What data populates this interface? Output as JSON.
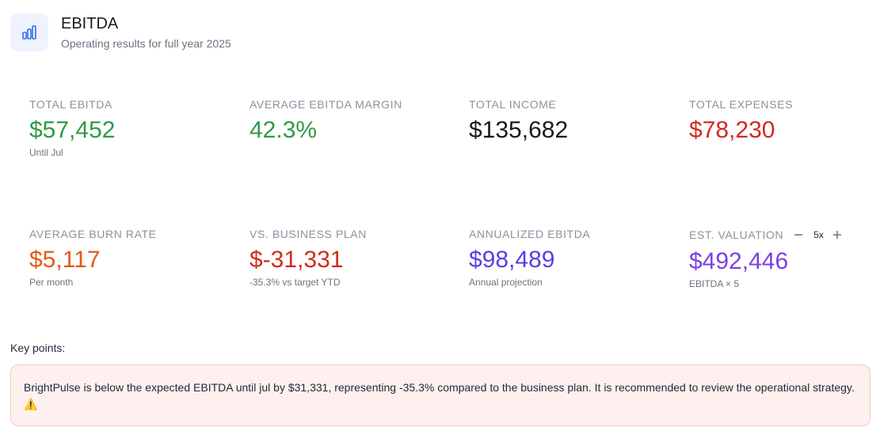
{
  "header": {
    "title": "EBITDA",
    "subtitle": "Operating results for full year 2025",
    "icon": "bar-chart-icon",
    "icon_color": "#2f6fe0"
  },
  "metrics": [
    {
      "label": "TOTAL EBITDA",
      "value": "$57,452",
      "sub": "Until Jul",
      "color": "#2e9a45"
    },
    {
      "label": "AVERAGE EBITDA MARGIN",
      "value": "42.3%",
      "sub": "",
      "color": "#2e9a45"
    },
    {
      "label": "TOTAL INCOME",
      "value": "$135,682",
      "sub": "",
      "color": "#1a1a1a"
    },
    {
      "label": "TOTAL EXPENSES",
      "value": "$78,230",
      "sub": "",
      "color": "#d22a1f"
    },
    {
      "label": "AVERAGE BURN RATE",
      "value": "$5,117",
      "sub": "Per month",
      "color": "#e25a12"
    },
    {
      "label": "VS. BUSINESS PLAN",
      "value": "$-31,331",
      "sub": "-35.3% vs target YTD",
      "color": "#d22a1f"
    },
    {
      "label": "ANNUALIZED EBITDA",
      "value": "$98,489",
      "sub": "Annual projection",
      "color": "#5a3de6"
    },
    {
      "label": "EST. VALUATION",
      "value": "$492,446",
      "sub": "EBITDA × 5",
      "color": "#7b3fe4",
      "multiplier": "5x"
    }
  ],
  "key_points": {
    "title": "Key points:",
    "text": "BrightPulse is below the expected EBITDA until jul by $31,331, representing -35.3% compared to the business plan. It is recommended to review the operational strategy. ⚠️"
  }
}
